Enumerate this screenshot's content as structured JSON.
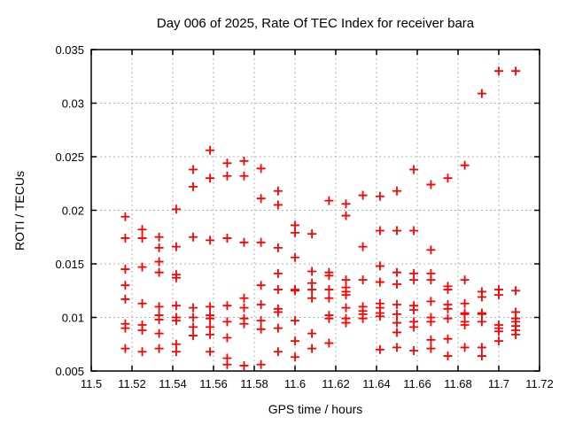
{
  "page": {
    "background": "#ffffff"
  },
  "chart_data": {
    "type": "scatter",
    "title": "Day 006 of 2025, Rate Of TEC Index for receiver bara",
    "xlabel": "GPS time / hours",
    "ylabel": "ROTI / TECUs",
    "xlim": [
      11.5,
      11.72
    ],
    "ylim": [
      0.005,
      0.035
    ],
    "xticks": {
      "values": [
        11.5,
        11.52,
        11.54,
        11.56,
        11.58,
        11.6,
        11.62,
        11.64,
        11.66,
        11.68,
        11.7,
        11.72
      ],
      "labels": [
        "11.5",
        "11.52",
        "11.54",
        "11.56",
        "11.58",
        "11.6",
        "11.62",
        "11.64",
        "11.66",
        "11.68",
        "11.7",
        "11.72"
      ]
    },
    "yticks": {
      "values": [
        0.005,
        0.01,
        0.015,
        0.02,
        0.025,
        0.03,
        0.035
      ],
      "labels": [
        "0.005",
        "0.01",
        "0.015",
        "0.02",
        "0.025",
        "0.03",
        "0.035"
      ]
    },
    "grid": true,
    "legend": "none",
    "colors": {
      "marker": "#ff0000",
      "grid": "#b0b0b0",
      "axis": "#000000",
      "background": "#ffffff"
    },
    "marker": {
      "shape": "plus",
      "size": 10,
      "stroke_width": 1.8
    },
    "series": [
      {
        "name": "ROTI",
        "points": [
          [
            11.5167,
            0.0194
          ],
          [
            11.5167,
            0.0174
          ],
          [
            11.5167,
            0.0145
          ],
          [
            11.5167,
            0.013
          ],
          [
            11.5167,
            0.0117
          ],
          [
            11.5167,
            0.0094
          ],
          [
            11.5167,
            0.009
          ],
          [
            11.5167,
            0.0071
          ],
          [
            11.525,
            0.0182
          ],
          [
            11.525,
            0.0174
          ],
          [
            11.525,
            0.0147
          ],
          [
            11.525,
            0.0113
          ],
          [
            11.525,
            0.0093
          ],
          [
            11.525,
            0.0088
          ],
          [
            11.525,
            0.0068
          ],
          [
            11.5333,
            0.0175
          ],
          [
            11.5333,
            0.0165
          ],
          [
            11.5333,
            0.0152
          ],
          [
            11.5333,
            0.0142
          ],
          [
            11.5333,
            0.011
          ],
          [
            11.5333,
            0.0102
          ],
          [
            11.5333,
            0.0098
          ],
          [
            11.5333,
            0.0085
          ],
          [
            11.5333,
            0.0071
          ],
          [
            11.5417,
            0.0201
          ],
          [
            11.5417,
            0.0166
          ],
          [
            11.5417,
            0.014
          ],
          [
            11.5417,
            0.0137
          ],
          [
            11.5417,
            0.0111
          ],
          [
            11.5417,
            0.01
          ],
          [
            11.5417,
            0.0097
          ],
          [
            11.5417,
            0.0075
          ],
          [
            11.5417,
            0.0068
          ],
          [
            11.55,
            0.0238
          ],
          [
            11.55,
            0.0222
          ],
          [
            11.55,
            0.0175
          ],
          [
            11.55,
            0.0109
          ],
          [
            11.55,
            0.01
          ],
          [
            11.55,
            0.0091
          ],
          [
            11.55,
            0.0083
          ],
          [
            11.5583,
            0.0256
          ],
          [
            11.5583,
            0.023
          ],
          [
            11.5583,
            0.0172
          ],
          [
            11.5583,
            0.011
          ],
          [
            11.5583,
            0.0102
          ],
          [
            11.5583,
            0.0099
          ],
          [
            11.5583,
            0.0091
          ],
          [
            11.5583,
            0.0084
          ],
          [
            11.5583,
            0.0068
          ],
          [
            11.5667,
            0.0244
          ],
          [
            11.5667,
            0.0232
          ],
          [
            11.5667,
            0.0174
          ],
          [
            11.5667,
            0.0111
          ],
          [
            11.5667,
            0.0096
          ],
          [
            11.5667,
            0.0081
          ],
          [
            11.5667,
            0.0062
          ],
          [
            11.5667,
            0.0056
          ],
          [
            11.575,
            0.0246
          ],
          [
            11.575,
            0.0232
          ],
          [
            11.575,
            0.017
          ],
          [
            11.575,
            0.0118
          ],
          [
            11.575,
            0.0109
          ],
          [
            11.575,
            0.0099
          ],
          [
            11.575,
            0.0094
          ],
          [
            11.575,
            0.0055
          ],
          [
            11.5833,
            0.0239
          ],
          [
            11.5833,
            0.0211
          ],
          [
            11.5833,
            0.017
          ],
          [
            11.5833,
            0.013
          ],
          [
            11.5833,
            0.0112
          ],
          [
            11.5833,
            0.0097
          ],
          [
            11.5833,
            0.0089
          ],
          [
            11.5833,
            0.0056
          ],
          [
            11.5917,
            0.0218
          ],
          [
            11.5917,
            0.0205
          ],
          [
            11.5917,
            0.0165
          ],
          [
            11.5917,
            0.0141
          ],
          [
            11.5917,
            0.0126
          ],
          [
            11.5917,
            0.0108
          ],
          [
            11.5917,
            0.0105
          ],
          [
            11.5917,
            0.009
          ],
          [
            11.5917,
            0.0068
          ],
          [
            11.6,
            0.0186
          ],
          [
            11.6,
            0.0179
          ],
          [
            11.6,
            0.0156
          ],
          [
            11.6,
            0.0126
          ],
          [
            11.6,
            0.0125
          ],
          [
            11.6,
            0.0097
          ],
          [
            11.6,
            0.0078
          ],
          [
            11.6,
            0.0063
          ],
          [
            11.6083,
            0.0178
          ],
          [
            11.6083,
            0.0143
          ],
          [
            11.6083,
            0.0132
          ],
          [
            11.6083,
            0.0126
          ],
          [
            11.6083,
            0.0118
          ],
          [
            11.6083,
            0.0085
          ],
          [
            11.6083,
            0.0071
          ],
          [
            11.6167,
            0.0209
          ],
          [
            11.6167,
            0.0142
          ],
          [
            11.6167,
            0.0139
          ],
          [
            11.6167,
            0.0126
          ],
          [
            11.6167,
            0.0118
          ],
          [
            11.6167,
            0.0102
          ],
          [
            11.6167,
            0.0099
          ],
          [
            11.6167,
            0.0076
          ],
          [
            11.625,
            0.0206
          ],
          [
            11.625,
            0.0195
          ],
          [
            11.625,
            0.0135
          ],
          [
            11.625,
            0.0128
          ],
          [
            11.625,
            0.0124
          ],
          [
            11.625,
            0.0121
          ],
          [
            11.625,
            0.0109
          ],
          [
            11.625,
            0.0099
          ],
          [
            11.625,
            0.0095
          ],
          [
            11.6333,
            0.0214
          ],
          [
            11.6333,
            0.0166
          ],
          [
            11.6333,
            0.0135
          ],
          [
            11.6333,
            0.011
          ],
          [
            11.6333,
            0.0106
          ],
          [
            11.6333,
            0.0103
          ],
          [
            11.6333,
            0.0099
          ],
          [
            11.6417,
            0.0213
          ],
          [
            11.6417,
            0.0181
          ],
          [
            11.6417,
            0.0148
          ],
          [
            11.6417,
            0.0133
          ],
          [
            11.6417,
            0.0113
          ],
          [
            11.6417,
            0.0109
          ],
          [
            11.6417,
            0.0104
          ],
          [
            11.6417,
            0.0101
          ],
          [
            11.6417,
            0.007
          ],
          [
            11.65,
            0.0218
          ],
          [
            11.65,
            0.0181
          ],
          [
            11.65,
            0.0142
          ],
          [
            11.65,
            0.0131
          ],
          [
            11.65,
            0.0112
          ],
          [
            11.65,
            0.0103
          ],
          [
            11.65,
            0.0095
          ],
          [
            11.65,
            0.0086
          ],
          [
            11.65,
            0.0072
          ],
          [
            11.6583,
            0.0238
          ],
          [
            11.6583,
            0.0181
          ],
          [
            11.6583,
            0.0141
          ],
          [
            11.6583,
            0.0135
          ],
          [
            11.6583,
            0.0111
          ],
          [
            11.6583,
            0.0107
          ],
          [
            11.6583,
            0.0096
          ],
          [
            11.6583,
            0.0091
          ],
          [
            11.6583,
            0.0069
          ],
          [
            11.6667,
            0.0224
          ],
          [
            11.6667,
            0.0163
          ],
          [
            11.6667,
            0.0141
          ],
          [
            11.6667,
            0.0135
          ],
          [
            11.6667,
            0.0115
          ],
          [
            11.6667,
            0.01
          ],
          [
            11.6667,
            0.0096
          ],
          [
            11.6667,
            0.0079
          ],
          [
            11.6667,
            0.0071
          ],
          [
            11.675,
            0.023
          ],
          [
            11.675,
            0.0129
          ],
          [
            11.675,
            0.0126
          ],
          [
            11.675,
            0.0112
          ],
          [
            11.675,
            0.0108
          ],
          [
            11.675,
            0.0099
          ],
          [
            11.675,
            0.008
          ],
          [
            11.675,
            0.0064
          ],
          [
            11.6833,
            0.0242
          ],
          [
            11.6833,
            0.0135
          ],
          [
            11.6833,
            0.0113
          ],
          [
            11.6833,
            0.0104
          ],
          [
            11.6833,
            0.0103
          ],
          [
            11.6833,
            0.0096
          ],
          [
            11.6833,
            0.0093
          ],
          [
            11.6833,
            0.0072
          ],
          [
            11.6917,
            0.0309
          ],
          [
            11.6917,
            0.0124
          ],
          [
            11.6917,
            0.0119
          ],
          [
            11.6917,
            0.0104
          ],
          [
            11.6917,
            0.0103
          ],
          [
            11.6917,
            0.0096
          ],
          [
            11.6917,
            0.0072
          ],
          [
            11.6917,
            0.0064
          ],
          [
            11.7,
            0.033
          ],
          [
            11.7,
            0.0126
          ],
          [
            11.7,
            0.0121
          ],
          [
            11.7,
            0.0093
          ],
          [
            11.7,
            0.009
          ],
          [
            11.7,
            0.0087
          ],
          [
            11.7,
            0.0078
          ],
          [
            11.7083,
            0.033
          ],
          [
            11.7083,
            0.0125
          ],
          [
            11.7083,
            0.0105
          ],
          [
            11.7083,
            0.0099
          ],
          [
            11.7083,
            0.0096
          ],
          [
            11.7083,
            0.0092
          ],
          [
            11.7083,
            0.0088
          ],
          [
            11.7083,
            0.0084
          ]
        ]
      }
    ]
  }
}
